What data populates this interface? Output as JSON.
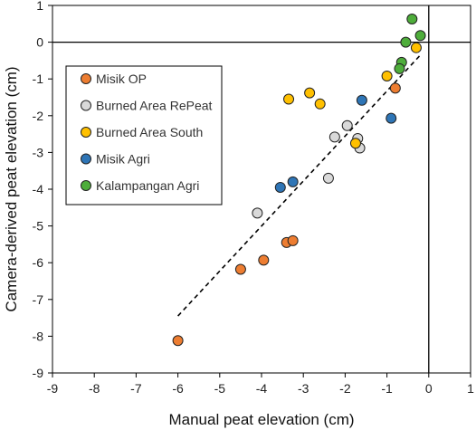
{
  "chart_data": {
    "type": "scatter",
    "xlabel": "Manual peat elevation (cm)",
    "ylabel": "Camera-derived peat elevation (cm)",
    "xlim": [
      -9,
      1
    ],
    "ylim": [
      -9,
      1
    ],
    "x_ticks": [
      "-9",
      "-8",
      "-7",
      "-6",
      "-5",
      "-4",
      "-3",
      "-2",
      "-1",
      "0",
      "1"
    ],
    "y_ticks": [
      "1",
      "0",
      "-1",
      "-2",
      "-3",
      "-4",
      "-5",
      "-6",
      "-7",
      "-8",
      "-9"
    ],
    "grid": false,
    "legend_position": "top-left",
    "reference_lines": {
      "x": 0,
      "y": 0
    },
    "trendline": {
      "style": "dashed",
      "x": [
        -6.0,
        -0.2
      ],
      "y": [
        -7.45,
        -0.35
      ]
    },
    "series": [
      {
        "name": "Misik OP",
        "color": "#ED7D31",
        "x": [
          -6.0,
          -4.5,
          -3.95,
          -3.4,
          -3.25,
          -0.8
        ],
        "y": [
          -8.12,
          -6.18,
          -5.93,
          -5.45,
          -5.4,
          -1.25
        ]
      },
      {
        "name": "Burned Area RePeat",
        "color": "#D9D9D9",
        "x": [
          -4.1,
          -2.4,
          -2.25,
          -1.95,
          -1.7,
          -1.65
        ],
        "y": [
          -4.65,
          -3.7,
          -2.58,
          -2.27,
          -2.62,
          -2.88
        ]
      },
      {
        "name": "Burned Area South",
        "color": "#FFC000",
        "x": [
          -3.35,
          -2.85,
          -2.6,
          -1.75,
          -1.0,
          -0.3
        ],
        "y": [
          -1.55,
          -1.38,
          -1.68,
          -2.75,
          -0.92,
          -0.15
        ]
      },
      {
        "name": "Misik Agri",
        "color": "#2E75B6",
        "x": [
          -3.55,
          -3.25,
          -1.6,
          -0.9
        ],
        "y": [
          -3.95,
          -3.8,
          -1.58,
          -2.07
        ]
      },
      {
        "name": "Kalampangan Agri",
        "color": "#4EAD3B",
        "x": [
          -0.4,
          -0.2,
          -0.55,
          -0.65,
          -0.7
        ],
        "y": [
          0.63,
          0.18,
          0.0,
          -0.55,
          -0.72
        ]
      }
    ]
  }
}
